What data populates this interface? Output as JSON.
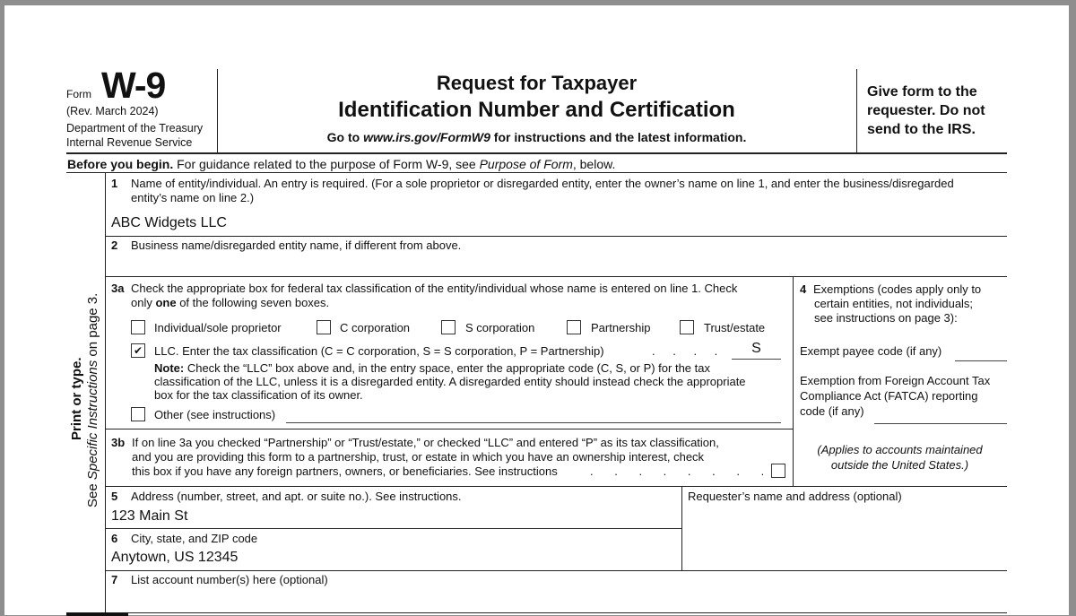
{
  "header": {
    "form_label": "Form",
    "form_number": "W-9",
    "revision": "(Rev. March 2024)",
    "department": "Department of the Treasury",
    "agency": "Internal Revenue Service",
    "title_line1": "Request for Taxpayer",
    "title_line2": "Identification Number and Certification",
    "goto_prefix": "Go to ",
    "goto_url": "www.irs.gov/FormW9",
    "goto_suffix": " for instructions and the latest information.",
    "give_form": "Give form to the requester. Do not send to the IRS."
  },
  "before_begin": {
    "bold": "Before you begin.",
    "text": " For guidance related to the purpose of Form W-9, see ",
    "italic": "Purpose of Form",
    "tail": ", below."
  },
  "side_label": {
    "line1": "Print or type.",
    "line2_prefix": "See ",
    "line2_italic": "Specific Instructions",
    "line2_suffix": " on page 3."
  },
  "line1": {
    "num": "1",
    "label": "Name of entity/individual. An entry is required. (For a sole proprietor or disregarded entity, enter the owner’s name on line 1, and enter the business/disregarded",
    "label2": "entity’s name on line 2.)",
    "value": "ABC Widgets LLC"
  },
  "line2": {
    "num": "2",
    "label": "Business name/disregarded entity name, if different from above.",
    "value": ""
  },
  "line3a": {
    "num": "3a",
    "label": "Check the appropriate box for federal tax classification of the entity/individual whose name is entered on line 1. Check",
    "label2_prefix": "only ",
    "label2_bold": "one",
    "label2_suffix": " of the following seven boxes.",
    "options": [
      {
        "label": "Individual/sole proprietor",
        "checked": false
      },
      {
        "label": "C corporation",
        "checked": false
      },
      {
        "label": "S corporation",
        "checked": false
      },
      {
        "label": "Partnership",
        "checked": false
      },
      {
        "label": "Trust/estate",
        "checked": false
      }
    ],
    "llc": {
      "label": "LLC. Enter the tax classification (C = C corporation, S = S corporation, P = Partnership)",
      "dots": ". . . .",
      "checked": true,
      "check_glyph": "✔",
      "value": "S"
    },
    "note_bold": "Note:",
    "note1": " Check the “LLC” box above and, in the entry space, enter the appropriate code (C, S, or P) for the tax",
    "note2": "classification of the LLC, unless it is a disregarded entity. A disregarded entity should instead check the appropriate",
    "note3": "box for the tax classification of its owner.",
    "other": {
      "label": "Other (see instructions)",
      "checked": false,
      "value": ""
    }
  },
  "line3b": {
    "num": "3b",
    "text1": "If on line 3a you checked “Partnership” or “Trust/estate,” or checked “LLC” and entered “P” as its tax classification,",
    "text2": "and you are providing this form to a partnership, trust, or estate in which you have an ownership interest, check",
    "text3": "this box if you have any foreign partners, owners, or beneficiaries. See instructions",
    "dots": ". . . . . . . .",
    "checked": false
  },
  "line4": {
    "num": "4",
    "text1": "Exemptions (codes apply only to",
    "text2": "certain entities, not individuals;",
    "text3": "see instructions on page 3):",
    "exempt_payee_label": "Exempt payee code (if any)",
    "exempt_payee_value": "",
    "fatca1": "Exemption from Foreign Account Tax",
    "fatca2": "Compliance Act (FATCA) reporting",
    "fatca3": "code (if any)",
    "fatca_value": "",
    "applies1": "(Applies to accounts maintained",
    "applies2": "outside the United States.)"
  },
  "line5": {
    "num": "5",
    "label": "Address (number, street, and apt. or suite no.). See instructions.",
    "value": "123 Main St"
  },
  "requester": {
    "label": "Requester’s name and address (optional)",
    "value": ""
  },
  "line6": {
    "num": "6",
    "label": "City, state, and ZIP code",
    "value": "Anytown, US 12345"
  },
  "line7": {
    "num": "7",
    "label": "List account number(s) here (optional)",
    "value": ""
  }
}
